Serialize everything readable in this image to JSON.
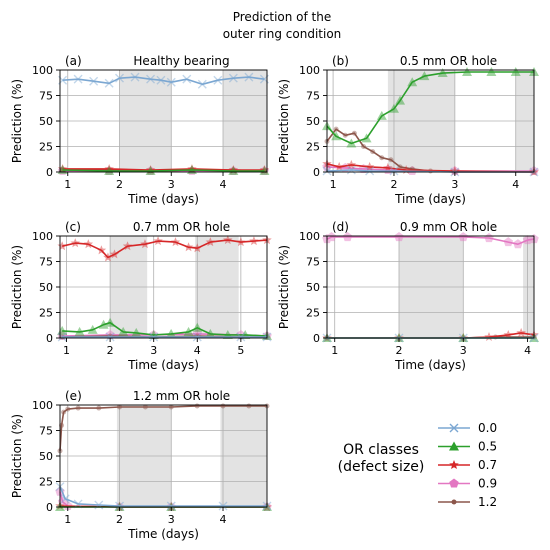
{
  "title_lines": [
    "Prediction of the",
    "outer ring condition"
  ],
  "colors": {
    "c0.0": "#7ba7d2",
    "c0.5": "#2ca02c",
    "c0.7": "#d62728",
    "c0.9": "#e377c2",
    "c1.2": "#8c564b",
    "shade": "#e3e3e3"
  },
  "legend": {
    "title_lines": [
      "OR classes",
      "(defect size)"
    ],
    "entries": [
      {
        "label": "0.0",
        "series": "0.0",
        "marker": "x"
      },
      {
        "label": "0.5",
        "series": "0.5",
        "marker": "triangle"
      },
      {
        "label": "0.7",
        "series": "0.7",
        "marker": "star"
      },
      {
        "label": "0.9",
        "series": "0.9",
        "marker": "pentagon"
      },
      {
        "label": "1.2",
        "series": "1.2",
        "marker": "dot"
      }
    ]
  },
  "chart_data": [
    {
      "type": "line",
      "panel_label": "(a)",
      "title": "Healthy bearing",
      "xlabel": "Time (days)",
      "ylabel": "Prediction (%)",
      "xlim": [
        0.85,
        4.85
      ],
      "ylim": [
        0,
        100
      ],
      "xticks": [
        1,
        2,
        3,
        4
      ],
      "yticks": [
        0,
        25,
        50,
        75,
        100
      ],
      "shaded": [
        [
          2,
          3
        ],
        [
          4,
          4.85
        ]
      ],
      "series": [
        {
          "name": "0.0",
          "x": [
            0.9,
            1.2,
            1.5,
            1.8,
            2.0,
            2.3,
            2.6,
            2.8,
            3.0,
            3.3,
            3.6,
            3.9,
            4.2,
            4.5,
            4.8
          ],
          "y": [
            90,
            91,
            89,
            87,
            92,
            93,
            91,
            90,
            88,
            91,
            86,
            90,
            92,
            93,
            91
          ]
        },
        {
          "name": "0.5",
          "x": [
            0.9,
            1.8,
            2.6,
            3.4,
            4.2,
            4.8
          ],
          "y": [
            2,
            1,
            1,
            2,
            1,
            1
          ]
        },
        {
          "name": "0.7",
          "x": [
            0.9,
            1.8,
            2.6,
            3.4,
            4.2,
            4.8
          ],
          "y": [
            3,
            3,
            2,
            3,
            2,
            2
          ]
        },
        {
          "name": "0.9",
          "x": [
            0.9,
            1.8,
            2.6,
            3.4,
            4.2,
            4.8
          ],
          "y": [
            1,
            1,
            1,
            1,
            1,
            1
          ]
        },
        {
          "name": "1.2",
          "x": [
            0.9,
            1.8,
            2.6,
            3.4,
            4.2,
            4.8
          ],
          "y": [
            2,
            2,
            1,
            2,
            2,
            1
          ]
        }
      ]
    },
    {
      "type": "line",
      "panel_label": "(b)",
      "title": "0.5 mm OR hole",
      "xlabel": "Time (days)",
      "ylabel": "Prediction (%)",
      "xlim": [
        0.9,
        4.3
      ],
      "ylim": [
        0,
        100
      ],
      "xticks": [
        1,
        2,
        3,
        4
      ],
      "yticks": [
        0,
        25,
        50,
        75,
        100
      ],
      "shaded": [
        [
          1.9,
          3
        ],
        [
          4,
          4.3
        ]
      ],
      "series": [
        {
          "name": "0.0",
          "x": [
            0.9,
            1.3,
            1.6,
            2.0,
            3.0,
            4.3
          ],
          "y": [
            1,
            2,
            1,
            1,
            0,
            0
          ]
        },
        {
          "name": "0.5",
          "x": [
            0.9,
            1.05,
            1.3,
            1.55,
            1.8,
            2.0,
            2.1,
            2.3,
            2.5,
            2.8,
            3.2,
            3.6,
            4.0,
            4.3
          ],
          "y": [
            45,
            35,
            28,
            33,
            55,
            62,
            70,
            88,
            94,
            97,
            98,
            98,
            98,
            98
          ]
        },
        {
          "name": "0.7",
          "x": [
            0.9,
            1.1,
            1.3,
            1.6,
            1.9,
            2.2,
            3.0,
            4.3
          ],
          "y": [
            8,
            5,
            7,
            5,
            4,
            2,
            1,
            0
          ]
        },
        {
          "name": "0.9",
          "x": [
            0.9,
            1.2,
            1.5,
            1.9,
            2.3,
            3.0,
            4.3
          ],
          "y": [
            5,
            4,
            3,
            2,
            1,
            1,
            1
          ]
        },
        {
          "name": "1.2",
          "x": [
            0.9,
            1.05,
            1.2,
            1.35,
            1.5,
            1.65,
            1.8,
            1.95,
            2.1,
            2.3,
            2.6,
            3.0,
            4.3
          ],
          "y": [
            30,
            42,
            36,
            38,
            25,
            20,
            14,
            12,
            5,
            3,
            1,
            0,
            0
          ]
        }
      ]
    },
    {
      "type": "line",
      "panel_label": "(c)",
      "title": "0.7 mm OR hole",
      "xlabel": "Time (days)",
      "ylabel": "Prediction (%)",
      "xlim": [
        0.85,
        5.6
      ],
      "ylim": [
        0,
        100
      ],
      "xticks": [
        1,
        2,
        3,
        4,
        5
      ],
      "yticks": [
        0,
        25,
        50,
        75,
        100
      ],
      "shaded": [
        [
          2,
          2.85
        ],
        [
          3.95,
          4.95
        ]
      ],
      "series": [
        {
          "name": "0.0",
          "x": [
            0.9,
            2.0,
            3.0,
            4.0,
            5.0,
            5.6
          ],
          "y": [
            1,
            1,
            1,
            1,
            1,
            1
          ]
        },
        {
          "name": "0.5",
          "x": [
            0.9,
            1.3,
            1.6,
            1.85,
            2.0,
            2.3,
            2.6,
            3.0,
            3.4,
            3.8,
            4.0,
            4.3,
            4.7,
            5.1,
            5.6
          ],
          "y": [
            7,
            6,
            8,
            13,
            15,
            6,
            5,
            3,
            4,
            6,
            10,
            4,
            3,
            3,
            2
          ]
        },
        {
          "name": "0.7",
          "x": [
            0.9,
            1.2,
            1.5,
            1.8,
            1.95,
            2.1,
            2.4,
            2.8,
            3.1,
            3.5,
            3.8,
            4.0,
            4.3,
            4.7,
            5.0,
            5.3,
            5.6
          ],
          "y": [
            90,
            93,
            92,
            86,
            79,
            82,
            90,
            92,
            95,
            94,
            89,
            88,
            94,
            96,
            94,
            95,
            96
          ]
        },
        {
          "name": "0.9",
          "x": [
            0.9,
            2.0,
            3.0,
            4.0,
            5.0,
            5.6
          ],
          "y": [
            2,
            3,
            3,
            4,
            3,
            2
          ]
        },
        {
          "name": "1.2",
          "x": [
            0.9,
            2.0,
            3.0,
            4.0,
            5.0,
            5.6
          ],
          "y": [
            1,
            2,
            1,
            2,
            1,
            1
          ]
        }
      ]
    },
    {
      "type": "line",
      "panel_label": "(d)",
      "title": "0.9 mm OR hole",
      "xlabel": "Time (days)",
      "ylabel": "Prediction (%)",
      "xlim": [
        0.88,
        4.1
      ],
      "ylim": [
        0,
        100
      ],
      "xticks": [
        1,
        2,
        3,
        4
      ],
      "yticks": [
        0,
        25,
        50,
        75,
        100
      ],
      "shaded": [
        [
          2,
          3
        ],
        [
          3.93,
          4.1
        ]
      ],
      "series": [
        {
          "name": "0.0",
          "x": [
            0.88,
            2.0,
            3.0,
            4.1
          ],
          "y": [
            0,
            0,
            0,
            0
          ]
        },
        {
          "name": "0.5",
          "x": [
            0.88,
            2.0,
            3.0,
            4.1
          ],
          "y": [
            0,
            0,
            0,
            0
          ]
        },
        {
          "name": "0.7",
          "x": [
            0.88,
            2.0,
            3.0,
            3.4,
            3.7,
            3.9,
            4.1
          ],
          "y": [
            0,
            0,
            0,
            1,
            3,
            5,
            3
          ]
        },
        {
          "name": "0.9",
          "x": [
            0.88,
            0.95,
            1.2,
            2.0,
            3.0,
            3.4,
            3.7,
            3.85,
            4.0,
            4.1
          ],
          "y": [
            97,
            99,
            99,
            99,
            99,
            98,
            94,
            92,
            96,
            97
          ]
        },
        {
          "name": "1.2",
          "x": [
            0.88,
            2.0,
            3.0,
            3.5,
            4.1
          ],
          "y": [
            0,
            0,
            0,
            1,
            1
          ]
        }
      ]
    },
    {
      "type": "line",
      "panel_label": "(e)",
      "title": "1.2 mm OR hole",
      "xlabel": "Time (days)",
      "ylabel": "Prediction (%)",
      "xlim": [
        0.85,
        4.85
      ],
      "ylim": [
        0,
        100
      ],
      "xticks": [
        1,
        2,
        3,
        4
      ],
      "yticks": [
        0,
        25,
        50,
        75,
        100
      ],
      "shaded": [
        [
          1.95,
          3
        ],
        [
          3.95,
          4.85
        ]
      ],
      "series": [
        {
          "name": "0.0",
          "x": [
            0.85,
            0.95,
            1.2,
            1.6,
            2.0,
            3.0,
            4.0,
            4.85
          ],
          "y": [
            20,
            8,
            3,
            2,
            1,
            1,
            1,
            1
          ]
        },
        {
          "name": "0.5",
          "x": [
            0.85,
            2.0,
            3.0,
            4.85
          ],
          "y": [
            0,
            0,
            0,
            0
          ]
        },
        {
          "name": "0.7",
          "x": [
            0.85,
            2.0,
            3.0,
            4.85
          ],
          "y": [
            1,
            0,
            0,
            0
          ]
        },
        {
          "name": "0.9",
          "x": [
            0.85,
            0.9,
            1.0,
            2.0,
            3.0,
            4.85
          ],
          "y": [
            15,
            5,
            1,
            0,
            0,
            0
          ]
        },
        {
          "name": "1.2",
          "x": [
            0.85,
            0.88,
            0.92,
            1.0,
            1.2,
            1.6,
            2.0,
            2.5,
            3.0,
            3.5,
            4.0,
            4.5,
            4.85
          ],
          "y": [
            55,
            80,
            93,
            96,
            97,
            97,
            98,
            98,
            98,
            99,
            99,
            99,
            99
          ]
        }
      ]
    }
  ]
}
